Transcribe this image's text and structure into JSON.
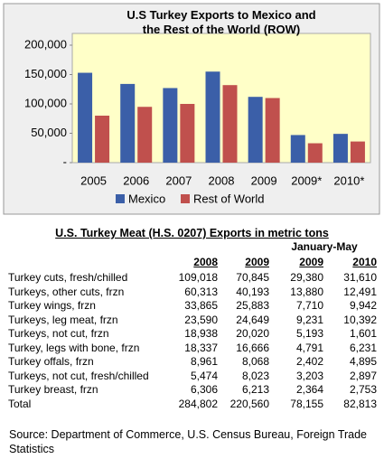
{
  "chart_data": {
    "type": "bar",
    "title": "U.S Turkey Exports to Mexico and the Rest of the World (ROW)",
    "categories": [
      "2005",
      "2006",
      "2007",
      "2008",
      "2009",
      "2009*",
      "2010*"
    ],
    "series": [
      {
        "name": "Mexico",
        "color": "#3b5fa8",
        "values": [
          153000,
          134000,
          127000,
          155000,
          112000,
          47000,
          49000
        ]
      },
      {
        "name": "Rest of World",
        "color": "#c0504d",
        "values": [
          80000,
          95000,
          100000,
          132000,
          110000,
          33000,
          36000
        ]
      }
    ],
    "ylim": [
      0,
      220000
    ],
    "yticks": [
      {
        "value": 0,
        "label": "-"
      },
      {
        "value": 50000,
        "label": "50,000"
      },
      {
        "value": 100000,
        "label": "100,000"
      },
      {
        "value": 150000,
        "label": "150,000"
      },
      {
        "value": 200000,
        "label": "200,000"
      }
    ],
    "legend": "bottom"
  },
  "table": {
    "title": "U.S. Turkey Meat (H.S. 0207) Exports in metric tons",
    "period_header": "January-May",
    "columns": [
      "2008",
      "2009",
      "2009",
      "2010"
    ],
    "rows": [
      [
        "Turkey cuts, fresh/chilled",
        "109,018",
        "70,845",
        "29,380",
        "31,610"
      ],
      [
        "Turkeys, other cuts, frzn",
        "60,313",
        "40,193",
        "13,880",
        "12,491"
      ],
      [
        "Turkey wings, frzn",
        "33,865",
        "25,883",
        "7,710",
        "9,942"
      ],
      [
        "Turkeys, leg meat, frzn",
        "23,590",
        "24,649",
        "9,231",
        "10,392"
      ],
      [
        "Turkeys, not cut, frzn",
        "18,938",
        "20,020",
        "5,193",
        "1,601"
      ],
      [
        "Turkey, legs with bone, frzn",
        "18,337",
        "16,666",
        "4,791",
        "6,231"
      ],
      [
        "Turkey offals, frzn",
        "8,961",
        "8,068",
        "2,402",
        "4,895"
      ],
      [
        "Turkeys, not cut, fresh/chilled",
        "5,474",
        "8,023",
        "3,203",
        "2,897"
      ],
      [
        "Turkey breast, frzn",
        "6,306",
        "6,213",
        "2,364",
        "2,753"
      ],
      [
        "Total",
        "284,802",
        "220,560",
        "78,155",
        "82,813"
      ]
    ]
  },
  "source": "Source:  Department of Commerce, U.S. Census Bureau, Foreign Trade Statistics"
}
